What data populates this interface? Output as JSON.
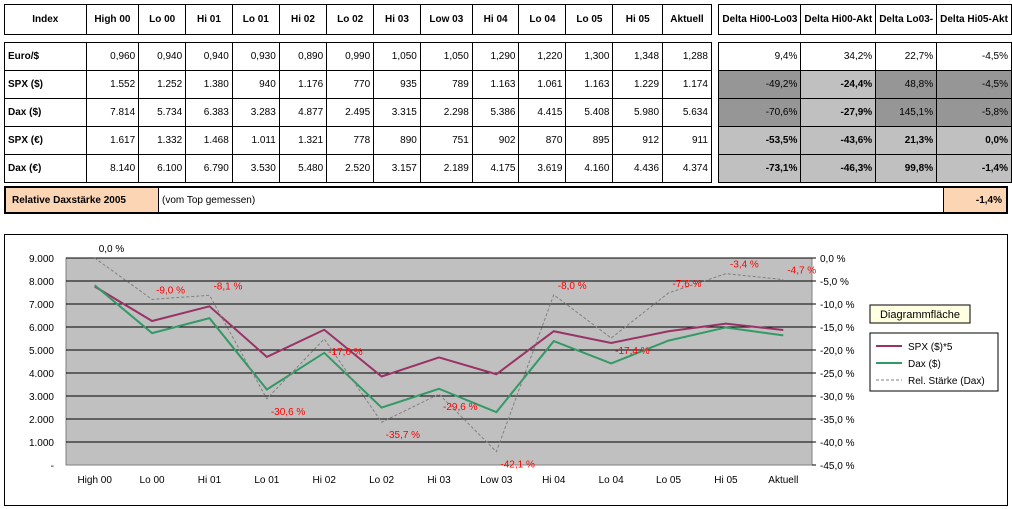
{
  "table": {
    "headers": [
      "Index",
      "High 00",
      "Lo 00",
      "Hi 01",
      "Lo 01",
      "Hi 02",
      "Lo 02",
      "Hi 03",
      "Low 03",
      "Hi 04",
      "Lo 04",
      "Lo 05",
      "Hi 05",
      "Aktuell",
      "Delta Hi00-Lo03",
      "Delta Hi00-Akt",
      "Delta Lo03-",
      "Delta Hi05-Akt"
    ],
    "rows": [
      {
        "label": "Euro/$",
        "values": [
          "0,960",
          "0,940",
          "0,940",
          "0,930",
          "0,890",
          "0,990",
          "1,050",
          "1,050",
          "1,290",
          "1,220",
          "1,300",
          "1,348",
          "1,288"
        ],
        "deltas": [
          "9,4%",
          "34,2%",
          "22,7%",
          "-4,5%"
        ],
        "shade": "none"
      },
      {
        "label": "SPX ($)",
        "values": [
          "1.552",
          "1.252",
          "1.380",
          "940",
          "1.176",
          "770",
          "935",
          "789",
          "1.163",
          "1.061",
          "1.163",
          "1.229",
          "1.174"
        ],
        "deltas": [
          "-49,2%",
          "-24,4%",
          "48,8%",
          "-4,5%"
        ],
        "shade": "dark"
      },
      {
        "label": "Dax ($)",
        "values": [
          "7.814",
          "5.734",
          "6.383",
          "3.283",
          "4.877",
          "2.495",
          "3.315",
          "2.298",
          "5.386",
          "4.415",
          "5.408",
          "5.980",
          "5.634"
        ],
        "deltas": [
          "-70,6%",
          "-27,9%",
          "145,1%",
          "-5,8%"
        ],
        "shade": "dark"
      },
      {
        "label": "SPX (€)",
        "values": [
          "1.617",
          "1.332",
          "1.468",
          "1.011",
          "1.321",
          "778",
          "890",
          "751",
          "902",
          "870",
          "895",
          "912",
          "911"
        ],
        "deltas": [
          "-53,5%",
          "-43,6%",
          "21,3%",
          "0,0%"
        ],
        "shade": "light"
      },
      {
        "label": "Dax (€)",
        "values": [
          "8.140",
          "6.100",
          "6.790",
          "3.530",
          "5.480",
          "2.520",
          "3.157",
          "2.189",
          "4.175",
          "3.619",
          "4.160",
          "4.436",
          "4.374"
        ],
        "deltas": [
          "-73,1%",
          "-46,3%",
          "99,8%",
          "-1,4%"
        ],
        "shade": "light"
      }
    ]
  },
  "relative": {
    "label": "Relative Daxstärke 2005",
    "note": "(vom Top gemessen)",
    "value": "-1,4%"
  },
  "tooltip": "Diagrammfläche",
  "colors": {
    "spx": "#993366",
    "dax": "#339966",
    "rel": "#808080",
    "plot_bg": "#c0c0c0",
    "chart_bg": "#ffffff",
    "annot": "#ff0000",
    "orange": "#fcd5b4"
  },
  "chart_data": {
    "type": "line",
    "categories": [
      "High 00",
      "Lo 00",
      "Hi 01",
      "Lo 01",
      "Hi 02",
      "Lo 02",
      "Hi 03",
      "Low 03",
      "Hi 04",
      "Lo 04",
      "Lo 05",
      "Hi 05",
      "Aktuell"
    ],
    "ylim": [
      0,
      9000
    ],
    "y_ticks": [
      "-",
      "1.000",
      "2.000",
      "3.000",
      "4.000",
      "5.000",
      "6.000",
      "7.000",
      "8.000",
      "9.000"
    ],
    "y2lim": [
      -45,
      0
    ],
    "y2_ticks": [
      "0,0 %",
      "-5,0 %",
      "-10,0 %",
      "-15,0 %",
      "-20,0 %",
      "-25,0 %",
      "-30,0 %",
      "-35,0 %",
      "-40,0 %",
      "-45,0 %"
    ],
    "series": [
      {
        "name": "SPX ($)*5",
        "axis": "left",
        "values": [
          7760,
          6260,
          6900,
          4700,
          5880,
          3850,
          4675,
          3945,
          5815,
          5305,
          5815,
          6145,
          5870
        ]
      },
      {
        "name": "Dax ($)",
        "axis": "left",
        "values": [
          7814,
          5734,
          6383,
          3283,
          4877,
          2495,
          3315,
          2298,
          5386,
          4415,
          5408,
          5980,
          5634
        ]
      },
      {
        "name": "Rel. Stärke (Dax)",
        "axis": "right",
        "values": [
          0.0,
          -9.0,
          -8.1,
          -30.6,
          -17.6,
          -35.7,
          -29.6,
          -42.1,
          -8.0,
          -17.4,
          -7.6,
          -3.4,
          -4.7
        ]
      }
    ],
    "annotations": [
      "0,0 %",
      "-9,0 %",
      "-8,1 %",
      "-30,6 %",
      "-17,6 %",
      "-35,7 %",
      "-29,6 %",
      "-42,1 %",
      "-8,0 %",
      "-17,4 %",
      "-7,6 %",
      "-3,4 %",
      "-4,7 %"
    ],
    "legend": "right"
  }
}
